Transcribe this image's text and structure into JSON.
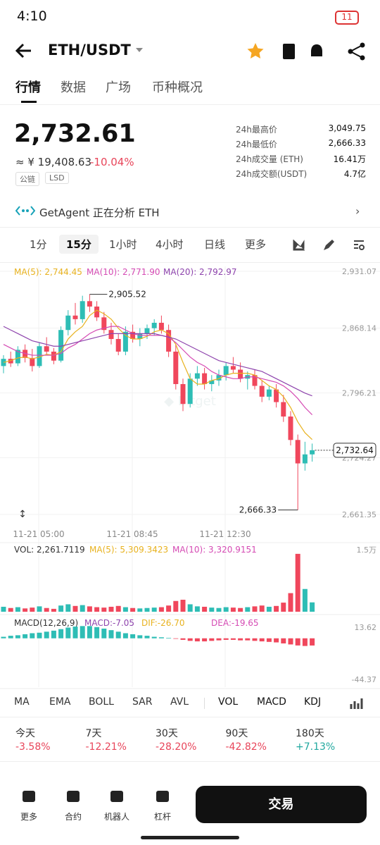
{
  "status": {
    "time": "4:10",
    "battery": "11"
  },
  "header": {
    "pair": "ETH/USDT"
  },
  "tabs": [
    "行情",
    "数据",
    "广场",
    "币种概况"
  ],
  "price": {
    "last": "2,732.61",
    "cny": "≈ ¥ 19,408.63",
    "change": "-10.04%",
    "tags": [
      "公链",
      "LSD"
    ]
  },
  "stats": [
    {
      "label": "24h最高价",
      "value": "3,049.75"
    },
    {
      "label": "24h最低价",
      "value": "2,666.33"
    },
    {
      "label": "24h成交量 (ETH)",
      "value": "16.41万"
    },
    {
      "label": "24h成交额(USDT)",
      "value": "4.7亿"
    }
  ],
  "agent": "GetAgent 正在分析 ETH",
  "intervals": [
    "1分",
    "15分",
    "1小时",
    "4小时",
    "日线",
    "更多"
  ],
  "kline": {
    "type": "candlestick",
    "up_color": "#2ebdb5",
    "down_color": "#f0475c",
    "ma": [
      {
        "name": "MA(5): 2,744.45",
        "color": "#e8b21f",
        "values": [
          2830,
          2832,
          2835,
          2836,
          2834,
          2836,
          2839,
          2838,
          2842,
          2856,
          2864,
          2870,
          2882,
          2888,
          2884,
          2878,
          2868,
          2860,
          2856,
          2856,
          2859,
          2864,
          2866,
          2862,
          2850,
          2830,
          2812,
          2806,
          2806,
          2810,
          2812,
          2816,
          2818,
          2818,
          2818,
          2816,
          2810,
          2804,
          2800,
          2792,
          2780,
          2764,
          2752,
          2744.45
        ]
      },
      {
        "name": "MA(10): 2,771.90",
        "color": "#d54bb4",
        "values": [
          2850,
          2846,
          2842,
          2840,
          2838,
          2838,
          2838,
          2838,
          2840,
          2846,
          2850,
          2856,
          2862,
          2866,
          2868,
          2870,
          2870,
          2866,
          2862,
          2860,
          2860,
          2860,
          2860,
          2858,
          2852,
          2844,
          2836,
          2830,
          2826,
          2820,
          2816,
          2814,
          2812,
          2812,
          2814,
          2814,
          2812,
          2810,
          2808,
          2804,
          2798,
          2790,
          2780,
          2771.9
        ]
      },
      {
        "name": "MA(20): 2,792.97",
        "color": "#8e44ad",
        "values": [
          2870,
          2866,
          2862,
          2858,
          2854,
          2852,
          2850,
          2848,
          2848,
          2850,
          2852,
          2854,
          2856,
          2858,
          2860,
          2862,
          2862,
          2862,
          2862,
          2862,
          2862,
          2862,
          2860,
          2858,
          2856,
          2852,
          2848,
          2844,
          2840,
          2836,
          2832,
          2830,
          2828,
          2826,
          2824,
          2822,
          2820,
          2816,
          2812,
          2808,
          2804,
          2800,
          2796,
          2792.97
        ]
      }
    ],
    "ylim": [
      2661.35,
      2931.07
    ],
    "yticks": [
      {
        "value": 2931.07,
        "label": "2,931.07"
      },
      {
        "value": 2868.14,
        "label": "2,868.14"
      },
      {
        "value": 2796.21,
        "label": "2,796.21"
      },
      {
        "value": 2724.27,
        "label": "2,724.27"
      },
      {
        "value": 2661.35,
        "label": "2,661.35"
      }
    ],
    "x_labels": [
      "11-21 05:00",
      "11-21 08:45",
      "11-21 12:30"
    ],
    "high": {
      "value": 2905.52,
      "label": "2,905.52"
    },
    "low": {
      "value": 2666.33,
      "label": "2,666.33"
    },
    "last": {
      "value": 2732.64,
      "label": "2,732.64"
    },
    "candles": [
      [
        2826,
        2838,
        2818,
        2834
      ],
      [
        2834,
        2842,
        2825,
        2829
      ],
      [
        2829,
        2848,
        2826,
        2844
      ],
      [
        2844,
        2850,
        2830,
        2835
      ],
      [
        2835,
        2845,
        2820,
        2826
      ],
      [
        2826,
        2852,
        2824,
        2848
      ],
      [
        2848,
        2858,
        2838,
        2842
      ],
      [
        2842,
        2846,
        2828,
        2832
      ],
      [
        2832,
        2870,
        2830,
        2866
      ],
      [
        2866,
        2888,
        2860,
        2882
      ],
      [
        2882,
        2896,
        2872,
        2878
      ],
      [
        2878,
        2904,
        2874,
        2898
      ],
      [
        2898,
        2905.52,
        2886,
        2892
      ],
      [
        2892,
        2898,
        2876,
        2880
      ],
      [
        2880,
        2886,
        2862,
        2866
      ],
      [
        2866,
        2874,
        2850,
        2856
      ],
      [
        2856,
        2862,
        2838,
        2842
      ],
      [
        2842,
        2870,
        2838,
        2864
      ],
      [
        2864,
        2872,
        2852,
        2856
      ],
      [
        2856,
        2868,
        2848,
        2862
      ],
      [
        2862,
        2872,
        2856,
        2868
      ],
      [
        2868,
        2878,
        2860,
        2874
      ],
      [
        2874,
        2882,
        2862,
        2866
      ],
      [
        2866,
        2872,
        2836,
        2842
      ],
      [
        2842,
        2850,
        2800,
        2806
      ],
      [
        2806,
        2812,
        2776,
        2784
      ],
      [
        2784,
        2818,
        2780,
        2812
      ],
      [
        2812,
        2826,
        2804,
        2818
      ],
      [
        2818,
        2824,
        2800,
        2806
      ],
      [
        2806,
        2816,
        2798,
        2810
      ],
      [
        2810,
        2822,
        2804,
        2816
      ],
      [
        2816,
        2830,
        2810,
        2826
      ],
      [
        2826,
        2836,
        2818,
        2822
      ],
      [
        2822,
        2830,
        2808,
        2812
      ],
      [
        2812,
        2820,
        2800,
        2816
      ],
      [
        2816,
        2822,
        2800,
        2804
      ],
      [
        2804,
        2810,
        2786,
        2792
      ],
      [
        2792,
        2804,
        2788,
        2800
      ],
      [
        2800,
        2806,
        2780,
        2786
      ],
      [
        2786,
        2794,
        2764,
        2770
      ],
      [
        2770,
        2776,
        2738,
        2744
      ],
      [
        2744,
        2750,
        2666.33,
        2718
      ],
      [
        2718,
        2742,
        2710,
        2728
      ],
      [
        2728,
        2740,
        2720,
        2732.64
      ]
    ]
  },
  "volume": {
    "legend": [
      "VOL: 2,261.7119",
      "MA(5): 5,309.3423",
      "MA(10): 3,320.9151"
    ],
    "ylim": [
      0,
      15000
    ],
    "yticks": [
      {
        "value": 15000,
        "label": "1.5万"
      }
    ],
    "values": [
      1200,
      900,
      1100,
      800,
      1000,
      1300,
      900,
      700,
      1500,
      1800,
      1400,
      1600,
      1300,
      1100,
      1000,
      1200,
      1400,
      1100,
      900,
      800,
      900,
      1000,
      1100,
      1500,
      2600,
      2900,
      1800,
      1300,
      1200,
      1000,
      900,
      1100,
      1000,
      900,
      1100,
      1300,
      1500,
      1200,
      1400,
      2200,
      4500,
      14000,
      5500,
      2261.7119
    ]
  },
  "macd": {
    "legend": [
      "MACD(12,26,9)",
      "MACD:-7.05",
      "DIF:-26.70",
      "DEA:-19.65"
    ],
    "ylim": [
      -44.37,
      13.62
    ],
    "yticks": [
      {
        "value": 13.62,
        "label": "13.62"
      },
      {
        "value": -44.37,
        "label": "-44.37"
      }
    ],
    "values": [
      1.5,
      2.5,
      3,
      4,
      5,
      5.5,
      6.5,
      7.5,
      9,
      10.5,
      11.5,
      12,
      12,
      11,
      9.5,
      8,
      6.5,
      5,
      4,
      3,
      2.5,
      1.5,
      1,
      0.5,
      -0.5,
      -1.5,
      -2.5,
      -3,
      -3,
      -2.5,
      -2,
      -1.5,
      -1.5,
      -2,
      -2,
      -2.5,
      -3,
      -3.5,
      -4,
      -5,
      -6,
      -7,
      -7.5,
      -7.05
    ]
  },
  "indicators": [
    "MA",
    "EMA",
    "BOLL",
    "SAR",
    "AVL",
    "VOL",
    "MACD",
    "KDJ"
  ],
  "periods": [
    {
      "label": "今天",
      "value": "-3.58%",
      "color": "#e8455a"
    },
    {
      "label": "7天",
      "value": "-12.21%",
      "color": "#e8455a"
    },
    {
      "label": "30天",
      "value": "-28.20%",
      "color": "#e8455a"
    },
    {
      "label": "90天",
      "value": "-42.82%",
      "color": "#e8455a"
    },
    {
      "label": "180天",
      "value": "+7.13%",
      "color": "#21a89f"
    }
  ],
  "nav": [
    "更多",
    "合约",
    "机器人",
    "杠杆"
  ],
  "trade": "交易"
}
